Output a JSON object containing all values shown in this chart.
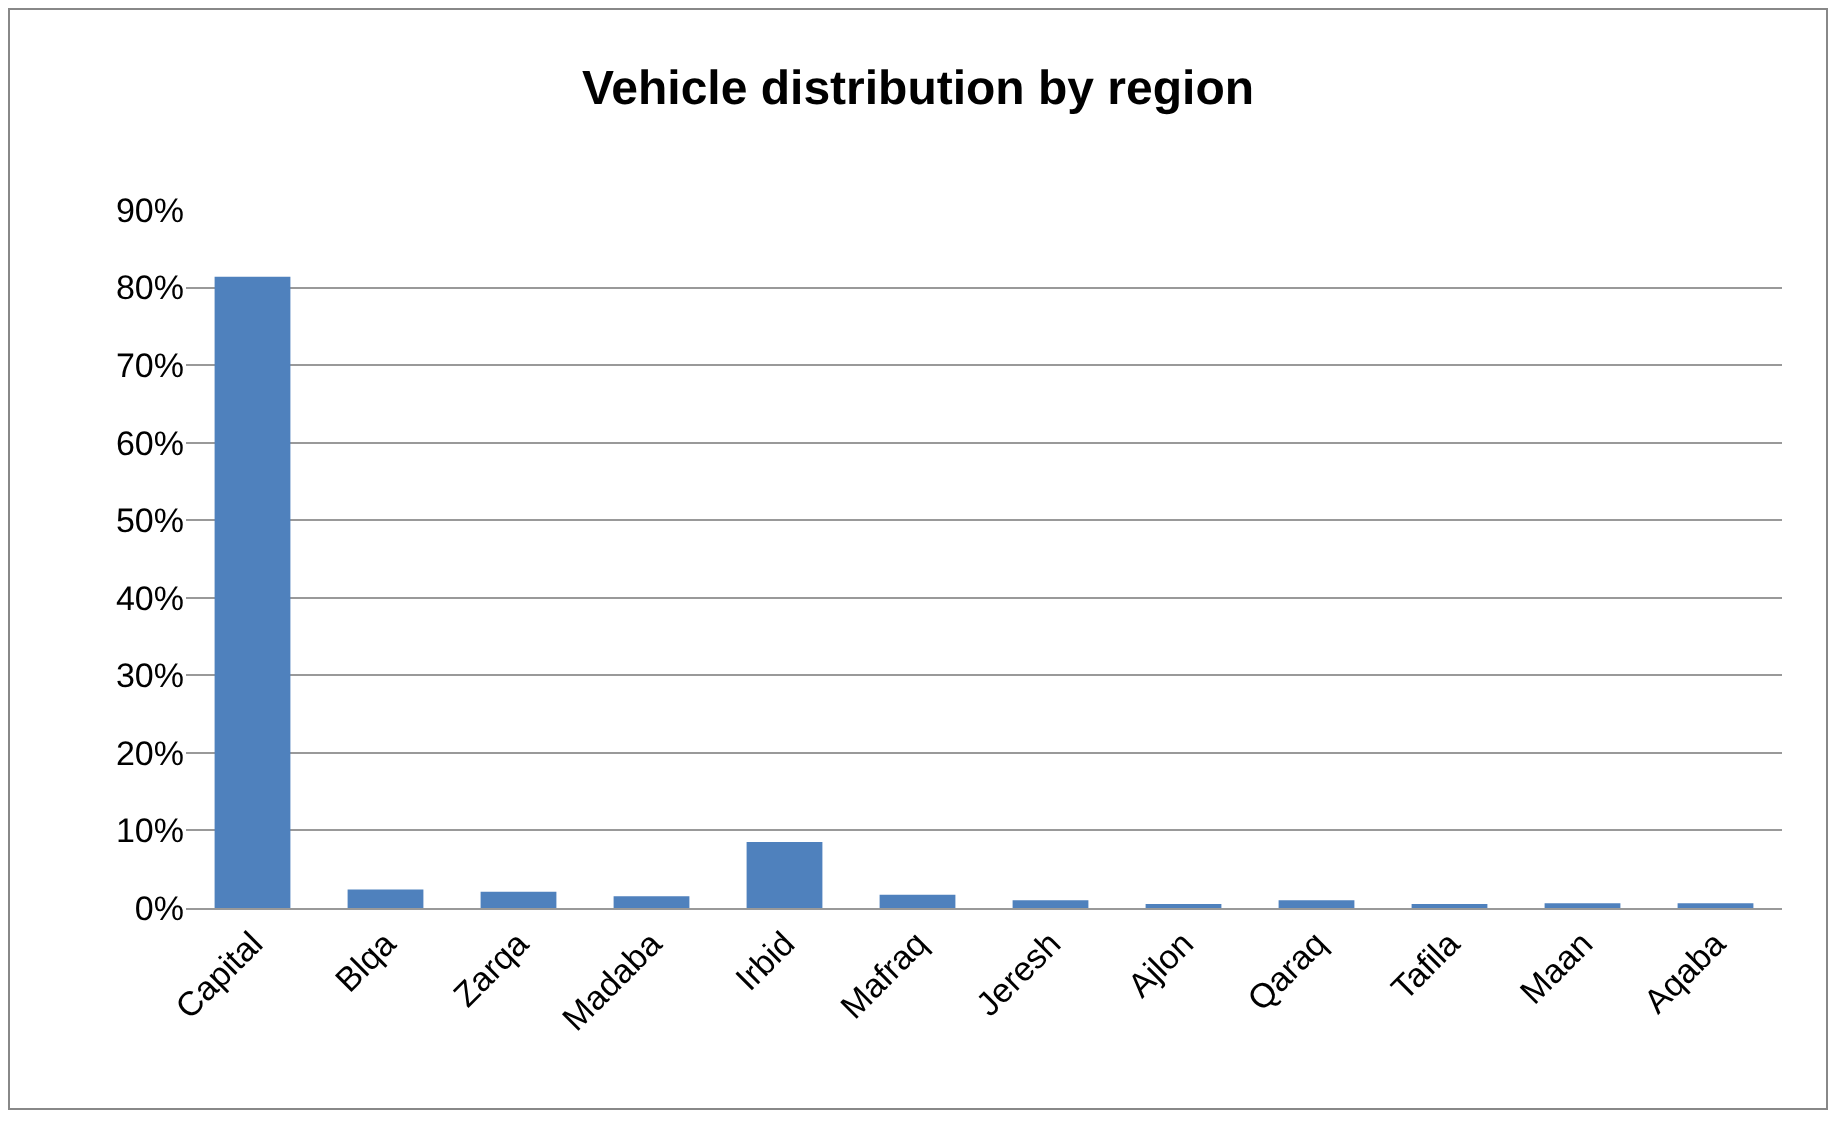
{
  "chart_data": {
    "type": "bar",
    "title": "Vehicle distribution by region",
    "categories": [
      "Capital",
      "Blqa",
      "Zarqa",
      "Madaba",
      "Irbid",
      "Mafraq",
      "Jeresh",
      "Ajlon",
      "Qaraq",
      "Tafila",
      "Maan",
      "Aqaba"
    ],
    "values": [
      81.4,
      2.4,
      2.1,
      1.5,
      8.5,
      1.7,
      1.0,
      0.4,
      1.0,
      0.4,
      0.6,
      0.6
    ],
    "color": "#4f81bd",
    "ylim": [
      0,
      90
    ],
    "yticks": [
      {
        "value": 0,
        "label": "0%"
      },
      {
        "value": 10,
        "label": "10%"
      },
      {
        "value": 20,
        "label": "20%"
      },
      {
        "value": 30,
        "label": "30%"
      },
      {
        "value": 40,
        "label": "40%"
      },
      {
        "value": 50,
        "label": "50%"
      },
      {
        "value": 60,
        "label": "60%"
      },
      {
        "value": 70,
        "label": "70%"
      },
      {
        "value": 80,
        "label": "80%"
      },
      {
        "value": 90,
        "label": "90%"
      }
    ],
    "grid": "y",
    "legend": false
  }
}
